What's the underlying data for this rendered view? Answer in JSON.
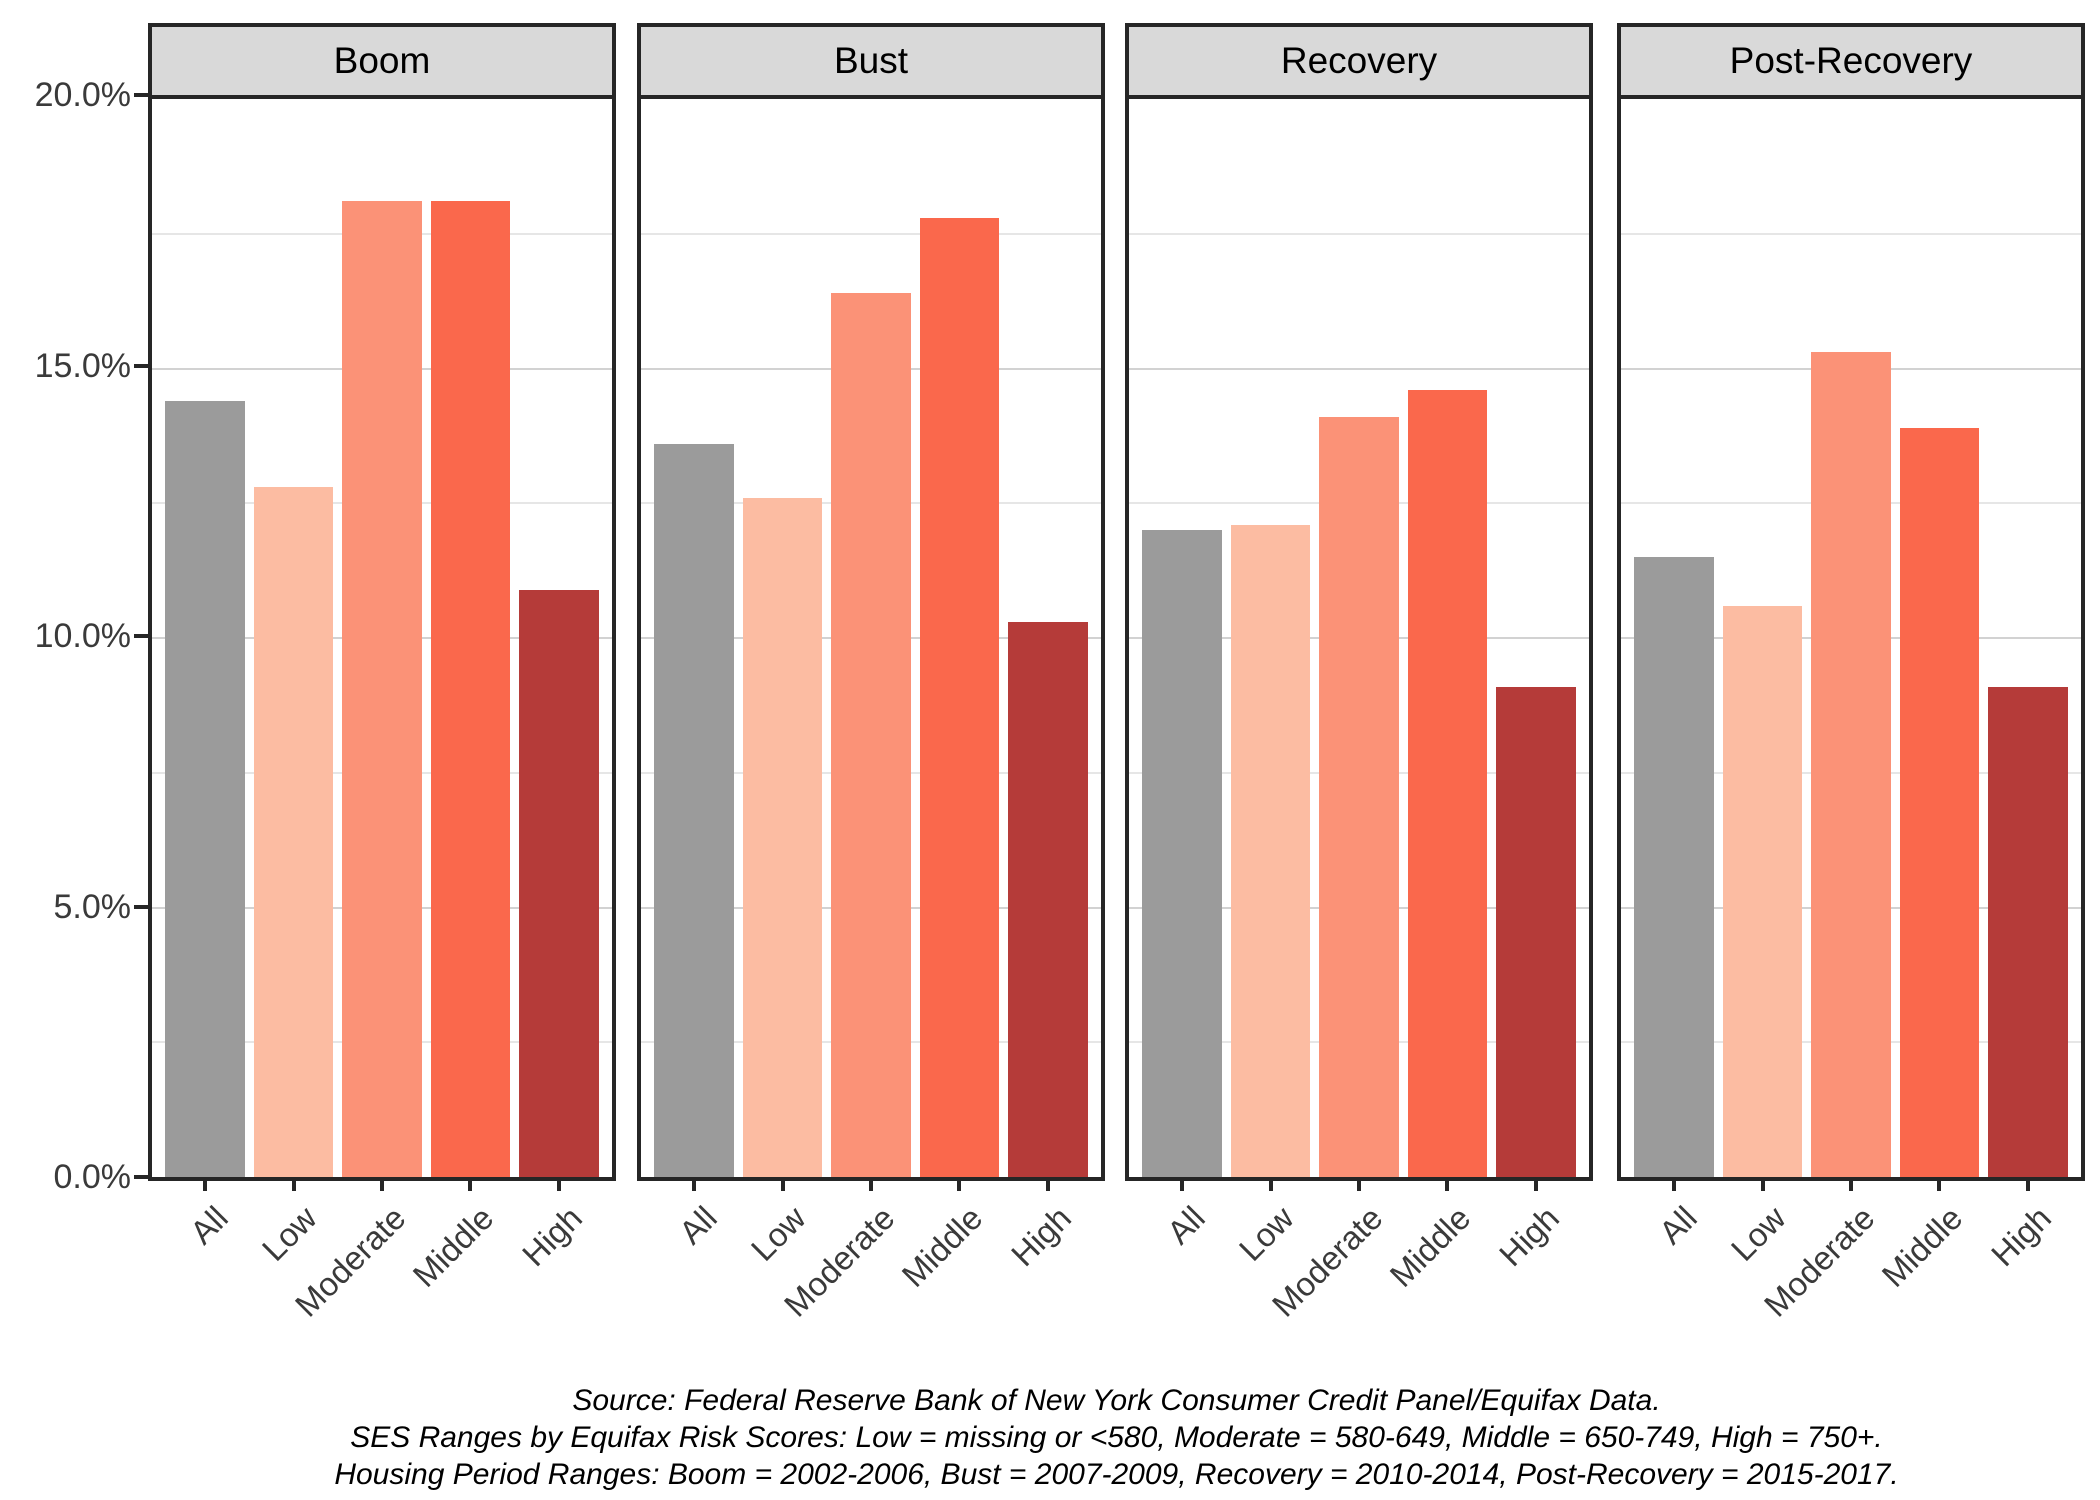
{
  "caption": {
    "line1": "Source: Federal Reserve Bank of New York Consumer Credit Panel/Equifax Data.",
    "line2": "SES Ranges by Equifax Risk Scores: Low = missing or <580, Moderate = 580-649, Middle = 650-749, High = 750+.",
    "line3": "Housing Period Ranges: Boom = 2002-2006, Bust = 2007-2009, Recovery = 2010-2014, Post-Recovery = 2015-2017."
  },
  "chart_data": {
    "type": "bar",
    "facets": [
      "Boom",
      "Bust",
      "Recovery",
      "Post-Recovery"
    ],
    "categories": [
      "All",
      "Low",
      "Moderate",
      "Middle",
      "High"
    ],
    "series": [
      {
        "facet": "Boom",
        "values": [
          14.4,
          12.8,
          18.1,
          18.1,
          10.9
        ]
      },
      {
        "facet": "Bust",
        "values": [
          13.6,
          12.6,
          16.4,
          17.8,
          10.3
        ]
      },
      {
        "facet": "Recovery",
        "values": [
          12.0,
          12.1,
          14.1,
          14.6,
          9.1
        ]
      },
      {
        "facet": "Post-Recovery",
        "values": [
          11.5,
          10.6,
          15.3,
          13.9,
          9.1
        ]
      }
    ],
    "ylim": [
      0,
      20
    ],
    "y_ticks": [
      {
        "value": 20,
        "label": "20.0%"
      },
      {
        "value": 15,
        "label": "15.0%"
      },
      {
        "value": 10,
        "label": "10.0%"
      },
      {
        "value": 5,
        "label": "5.0%"
      },
      {
        "value": 0,
        "label": "0.0%"
      }
    ],
    "grid": {
      "major_every": 5,
      "minor_every": 2.5,
      "vertical": false
    },
    "legend": "none",
    "bar_colors": [
      "#9b9b9b",
      "#fcbca2",
      "#fb9277",
      "#fa684c",
      "#b53b39"
    ],
    "strip_bg": "#d9d9d9",
    "panel_border_color": "#262626",
    "grid_major_color": "#d2d2d2",
    "grid_minor_color": "#e6e6e6",
    "axis_text_color": "#3a3a3a"
  }
}
